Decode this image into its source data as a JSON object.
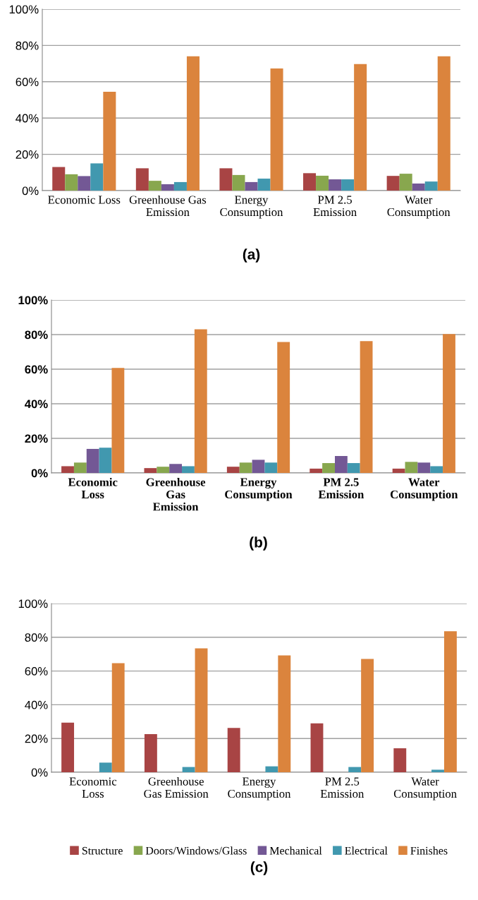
{
  "chart_data": [
    {
      "type": "bar",
      "title": "(a)",
      "categories": [
        "Economic Loss",
        "Greenhouse Gas\nEmission",
        "Energy\nConsumption",
        "PM 2.5\nEmission",
        "Water\nConsumption"
      ],
      "series": [
        {
          "color": "#a84444",
          "values": [
            13,
            12.3,
            12.3,
            9.6,
            8.1
          ]
        },
        {
          "color": "#88a74e",
          "values": [
            9,
            5.4,
            8.6,
            8.2,
            9.3
          ]
        },
        {
          "color": "#735895",
          "values": [
            8,
            3.5,
            4.7,
            6.2,
            3.9
          ]
        },
        {
          "color": "#4198af",
          "values": [
            15,
            4.7,
            6.6,
            6.2,
            5
          ]
        },
        {
          "color": "#db843d",
          "values": [
            54.5,
            74,
            67.3,
            69.7,
            74
          ]
        }
      ],
      "ylim": [
        0,
        100
      ],
      "yticks": [
        {
          "value": 0,
          "label": "0%"
        },
        {
          "value": 20,
          "label": "20%"
        },
        {
          "value": 40,
          "label": "40%"
        },
        {
          "value": 60,
          "label": "60%"
        },
        {
          "value": 80,
          "label": "80%"
        },
        {
          "value": 100,
          "label": "100%"
        }
      ],
      "grid": "y",
      "legend": false
    },
    {
      "type": "bar",
      "title": "(b)",
      "categories": [
        "Economic\nLoss",
        "Greenhouse\nGas\nEmission",
        "Energy\nConsumption",
        "PM 2.5\nEmission",
        "Water\nConsumption"
      ],
      "series": [
        {
          "color": "#a84444",
          "values": [
            3.9,
            2.8,
            3.6,
            2.5,
            2.5
          ]
        },
        {
          "color": "#88a74e",
          "values": [
            6,
            3.6,
            6,
            5.7,
            6.4
          ]
        },
        {
          "color": "#735895",
          "values": [
            13.9,
            5.2,
            7.6,
            9.8,
            6
          ]
        },
        {
          "color": "#4198af",
          "values": [
            14.6,
            3.9,
            6,
            5.7,
            3.9
          ]
        },
        {
          "color": "#db843d",
          "values": [
            60.7,
            83.1,
            75.7,
            76.2,
            80.3
          ]
        }
      ],
      "ylim": [
        0,
        100
      ],
      "yticks": [
        {
          "value": 0,
          "label": "0%"
        },
        {
          "value": 20,
          "label": "20%"
        },
        {
          "value": 40,
          "label": "40%"
        },
        {
          "value": 60,
          "label": "60%"
        },
        {
          "value": 80,
          "label": "80%"
        },
        {
          "value": 100,
          "label": "100%"
        }
      ],
      "grid": "y",
      "legend": false
    },
    {
      "type": "bar",
      "title": "(c)",
      "categories": [
        "Economic\nLoss",
        "Greenhouse\nGas Emission",
        "Energy\nConsumption",
        "PM 2.5\nEmission",
        "Water\nConsumption"
      ],
      "series": [
        {
          "name": "Structure",
          "color": "#a84444",
          "values": [
            29.4,
            22.6,
            26.3,
            29,
            14.2
          ]
        },
        {
          "name": "Doors/Windows/Glass",
          "color": "#88a74e",
          "values": [
            null,
            null,
            null,
            null,
            null
          ]
        },
        {
          "name": "Mechanical",
          "color": "#735895",
          "values": [
            null,
            null,
            null,
            null,
            null
          ]
        },
        {
          "name": "Electrical",
          "color": "#4198af",
          "values": [
            5.7,
            3.1,
            3.5,
            3.1,
            1.5
          ]
        },
        {
          "name": "Finishes",
          "color": "#db843d",
          "values": [
            64.6,
            73.4,
            69.2,
            67.2,
            83.6
          ]
        }
      ],
      "ylim": [
        0,
        100
      ],
      "yticks": [
        {
          "value": 0,
          "label": "0%"
        },
        {
          "value": 20,
          "label": "20%"
        },
        {
          "value": 40,
          "label": "40%"
        },
        {
          "value": 60,
          "label": "60%"
        },
        {
          "value": 80,
          "label": "80%"
        },
        {
          "value": 100,
          "label": "100%"
        }
      ],
      "grid": "y",
      "legend": "bottom"
    }
  ]
}
